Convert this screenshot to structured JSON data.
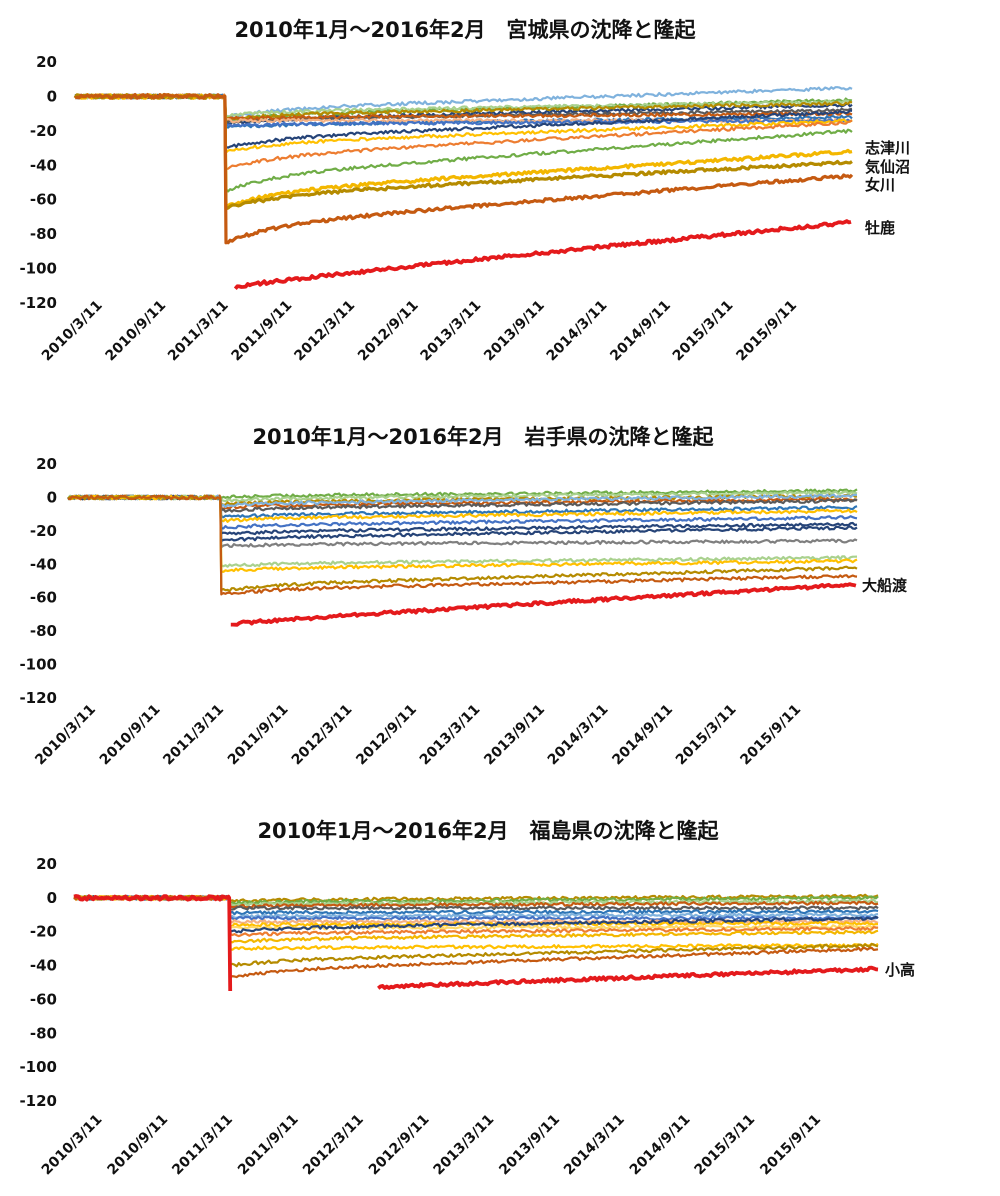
{
  "chart_data": [
    {
      "type": "line",
      "title": "2010年1月～2016年2月　宮城県の沈降と隆起",
      "xlabel": "",
      "ylabel": "",
      "xlim": [
        "2010-01-01",
        "2016-02-28"
      ],
      "ylim": [
        -120,
        20
      ],
      "yticks": [
        "20",
        "0",
        "-20",
        "-40",
        "-60",
        "-80",
        "-100",
        "-120"
      ],
      "xticks": [
        "2010/3/11",
        "2010/9/11",
        "2011/3/11",
        "2011/9/11",
        "2012/3/11",
        "2012/9/11",
        "2013/3/11",
        "2013/9/11",
        "2014/3/11",
        "2014/9/11",
        "2015/3/11",
        "2015/9/11"
      ],
      "grid": false,
      "legend": "none",
      "labeled_series": [
        {
          "name": "志津川",
          "color": "#f3b700",
          "pre": 0,
          "after": -64,
          "end": -32
        },
        {
          "name": "気仙沼",
          "color": "#b58b00",
          "pre": 0,
          "after": -65,
          "end": -38
        },
        {
          "name": "女川",
          "color": "#c55a11",
          "pre": 0,
          "after": -85,
          "end": -46
        },
        {
          "name": "牡鹿",
          "color": "#e41a1c",
          "pre": null,
          "after": -111,
          "end": -73
        }
      ],
      "other_series": [
        {
          "color": "#7fb2dd",
          "after": -12,
          "end": 5
        },
        {
          "color": "#70ad47",
          "after": -14,
          "end": -2
        },
        {
          "color": "#a9d18e",
          "after": -11,
          "end": -3
        },
        {
          "color": "#264478",
          "after": -16,
          "end": -5
        },
        {
          "color": "#b58b00",
          "after": -13,
          "end": -4
        },
        {
          "color": "#5a5a5a",
          "after": -15,
          "end": -8
        },
        {
          "color": "#2e75b6",
          "after": -18,
          "end": -12
        },
        {
          "color": "#c55a11",
          "after": -13,
          "end": -10
        },
        {
          "color": "#f4b183",
          "after": -14,
          "end": -14
        },
        {
          "color": "#4472c4",
          "after": -17,
          "end": -14
        },
        {
          "color": "#ffc000",
          "after": -32,
          "end": -14
        },
        {
          "color": "#264478",
          "after": -30,
          "end": -9
        },
        {
          "color": "#ed7d31",
          "after": -42,
          "end": -15
        },
        {
          "color": "#70ad47",
          "after": -55,
          "end": -20
        }
      ]
    },
    {
      "type": "line",
      "title": "2010年1月～2016年2月　岩手県の沈降と隆起",
      "xlabel": "",
      "ylabel": "",
      "xlim": [
        "2010-01-01",
        "2016-02-28"
      ],
      "ylim": [
        -120,
        20
      ],
      "yticks": [
        "20",
        "0",
        "-20",
        "-40",
        "-60",
        "-80",
        "-100",
        "-120"
      ],
      "xticks": [
        "2010/3/11",
        "2010/9/11",
        "2011/3/11",
        "2011/9/11",
        "2012/3/11",
        "2012/9/11",
        "2013/3/11",
        "2013/9/11",
        "2014/3/11",
        "2014/9/11",
        "2015/3/11",
        "2015/9/11"
      ],
      "grid": false,
      "legend": "none",
      "labeled_series": [
        {
          "name": "大船渡",
          "color": "#e41a1c",
          "pre": null,
          "after": -76,
          "end": -52
        }
      ],
      "other_series": [
        {
          "color": "#70ad47",
          "after": 0,
          "end": 4
        },
        {
          "color": "#a9d18e",
          "after": -2,
          "end": 3
        },
        {
          "color": "#b58b00",
          "after": -4,
          "end": 1
        },
        {
          "color": "#c55a11",
          "after": -6,
          "end": -1
        },
        {
          "color": "#5a5a5a",
          "after": -8,
          "end": -2
        },
        {
          "color": "#7fb2dd",
          "after": -5,
          "end": 1
        },
        {
          "color": "#2e75b6",
          "after": -12,
          "end": -6
        },
        {
          "color": "#ffc000",
          "after": -14,
          "end": -8
        },
        {
          "color": "#4472c4",
          "after": -18,
          "end": -12
        },
        {
          "color": "#264478",
          "after": -22,
          "end": -16
        },
        {
          "color": "#264478",
          "after": -26,
          "end": -18
        },
        {
          "color": "#7f7f7f",
          "after": -29,
          "end": -26
        },
        {
          "color": "#a9d18e",
          "after": -41,
          "end": -36
        },
        {
          "color": "#ffc000",
          "after": -44,
          "end": -38
        },
        {
          "color": "#b58b00",
          "after": -56,
          "end": -42
        },
        {
          "color": "#c55a11",
          "after": -58,
          "end": -47
        }
      ]
    },
    {
      "type": "line",
      "title": "2010年1月～2016年2月　福島県の沈降と隆起",
      "xlabel": "",
      "ylabel": "",
      "xlim": [
        "2010-01-01",
        "2016-02-28"
      ],
      "ylim": [
        -120,
        20
      ],
      "yticks": [
        "20",
        "0",
        "-20",
        "-40",
        "-60",
        "-80",
        "-100",
        "-120"
      ],
      "xticks": [
        "2010/3/11",
        "2010/9/11",
        "2011/3/11",
        "2011/9/11",
        "2012/3/11",
        "2012/9/11",
        "2013/3/11",
        "2013/9/11",
        "2014/3/11",
        "2014/9/11",
        "2015/3/11",
        "2015/9/11"
      ],
      "grid": false,
      "legend": "none",
      "labeled_series": [
        {
          "name": "小高",
          "color": "#e41a1c",
          "pre": 0,
          "after": -55,
          "gap_to": "2012-05-01",
          "resume": -53,
          "end": -42
        }
      ],
      "other_series": [
        {
          "color": "#b58b00",
          "after": -2,
          "end": 1
        },
        {
          "color": "#70ad47",
          "after": -3,
          "end": 0
        },
        {
          "color": "#a9d18e",
          "after": -4,
          "end": -2
        },
        {
          "color": "#c55a11",
          "after": -5,
          "end": -3
        },
        {
          "color": "#5a5a5a",
          "after": -6,
          "end": -6
        },
        {
          "color": "#2e75b6",
          "after": -9,
          "end": -8
        },
        {
          "color": "#7fb2dd",
          "after": -11,
          "end": -10
        },
        {
          "color": "#4472c4",
          "after": -12,
          "end": -12
        },
        {
          "color": "#f4b183",
          "after": -14,
          "end": -14
        },
        {
          "color": "#ffc000",
          "after": -16,
          "end": -15
        },
        {
          "color": "#ffd966",
          "after": -18,
          "end": -17
        },
        {
          "color": "#264478",
          "after": -20,
          "end": -12
        },
        {
          "color": "#ed7d31",
          "after": -22,
          "end": -18
        },
        {
          "color": "#f3b700",
          "after": -26,
          "end": -20
        },
        {
          "color": "#ffc000",
          "after": -30,
          "end": -28
        },
        {
          "color": "#b58b00",
          "after": -40,
          "end": -28
        },
        {
          "color": "#c55a11",
          "after": -47,
          "end": -30
        }
      ]
    }
  ]
}
